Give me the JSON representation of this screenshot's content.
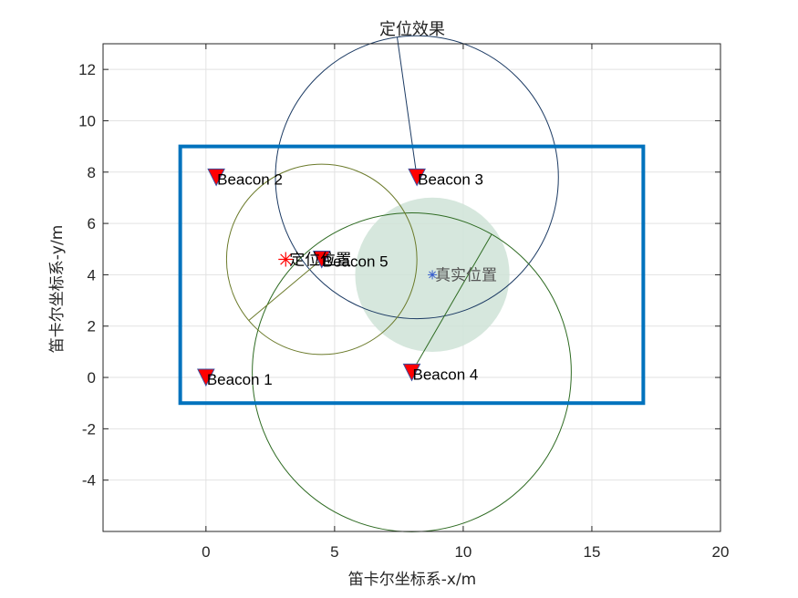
{
  "chart_data": {
    "type": "scatter",
    "title": "定位效果",
    "xlabel": "笛卡尔坐标系-x/m",
    "ylabel": "笛卡尔坐标系-y/m",
    "xlim": [
      -4,
      20
    ],
    "ylim": [
      -6,
      13
    ],
    "xticks": [
      0,
      5,
      10,
      15,
      20
    ],
    "yticks": [
      -4,
      -2,
      0,
      2,
      4,
      6,
      8,
      10,
      12
    ],
    "grid": true,
    "room_rect": {
      "x0": -1,
      "y0": -1,
      "x1": 17,
      "y1": 9,
      "color": "#0072BD"
    },
    "beacons": [
      {
        "label": "Beacon 1",
        "x": 0.0,
        "y": 0.0,
        "range": null
      },
      {
        "label": "Beacon 2",
        "x": 0.4,
        "y": 7.8,
        "range": null
      },
      {
        "label": "Beacon 3",
        "x": 8.2,
        "y": 7.8,
        "range": 5.5,
        "circle_color": "#1B3A63"
      },
      {
        "label": "Beacon 4",
        "x": 8.0,
        "y": 0.2,
        "range": 6.2,
        "circle_color": "#2E6B22"
      },
      {
        "label": "Beacon 5",
        "x": 4.5,
        "y": 4.6,
        "range": 3.7,
        "circle_color": "#6B7A2A"
      }
    ],
    "beacon_color": "#FF0000",
    "true_position": {
      "label": "真实位置",
      "x": 8.8,
      "y": 4.0,
      "uncertainty_radius": 3.0,
      "color": "#3A5FCD",
      "fill": "#cfe3d7"
    },
    "estimated_position": {
      "label": "定位位置",
      "x": 3.1,
      "y": 4.6,
      "color": "#FF0000"
    }
  }
}
